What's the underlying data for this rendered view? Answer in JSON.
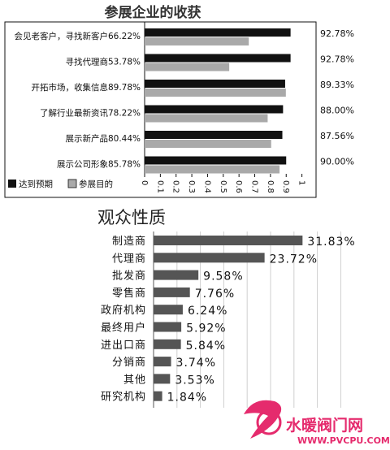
{
  "chart_data": [
    {
      "type": "bar",
      "orientation": "horizontal",
      "title": "参展企业的收获",
      "categories": [
        "会见老客户，寻找新客户66.22%",
        "寻找代理商53.78%",
        "开拓市场，收集信息89.78%",
        "了解行业最新资讯78.22%",
        "展示新产品80.44%",
        "展示公司形象85.78%"
      ],
      "series": [
        {
          "name": "达到预期",
          "color": "#111111",
          "values": [
            0.9278,
            0.9278,
            0.8933,
            0.88,
            0.8756,
            0.9
          ],
          "labels": [
            "92.78%",
            "92.78%",
            "89.33%",
            "88.00%",
            "87.56%",
            "90.00%"
          ]
        },
        {
          "name": "参展目的",
          "color": "#a9a9a9",
          "values": [
            0.6622,
            0.5378,
            0.8978,
            0.7822,
            0.8044,
            0.8578
          ]
        }
      ],
      "xlim": [
        0,
        1
      ],
      "ticks": [
        "0",
        "0.1",
        "0.2",
        "0.3",
        "0.4",
        "0.5",
        "0.6",
        "0.7",
        "0.8",
        "0.9",
        "1"
      ],
      "legend": "bottom-left"
    },
    {
      "type": "bar",
      "orientation": "horizontal",
      "title": "观众性质",
      "categories": [
        "制造商",
        "代理商",
        "批发商",
        "零售商",
        "政府机构",
        "最终用户",
        "进出口商",
        "分销商",
        "其他",
        "研究机构"
      ],
      "values": [
        31.83,
        23.72,
        9.58,
        7.76,
        6.24,
        5.92,
        5.84,
        3.74,
        3.53,
        1.84
      ],
      "labels": [
        "31.83%",
        "23.72%",
        "9.58%",
        "7.76%",
        "6.24%",
        "5.92%",
        "5.84%",
        "3.74%",
        "3.53%",
        "1.84%"
      ],
      "color": "#555555",
      "grid": true
    }
  ],
  "watermark": {
    "name": "水暖阀门网",
    "url": "WWW.PVCPU.COM"
  }
}
